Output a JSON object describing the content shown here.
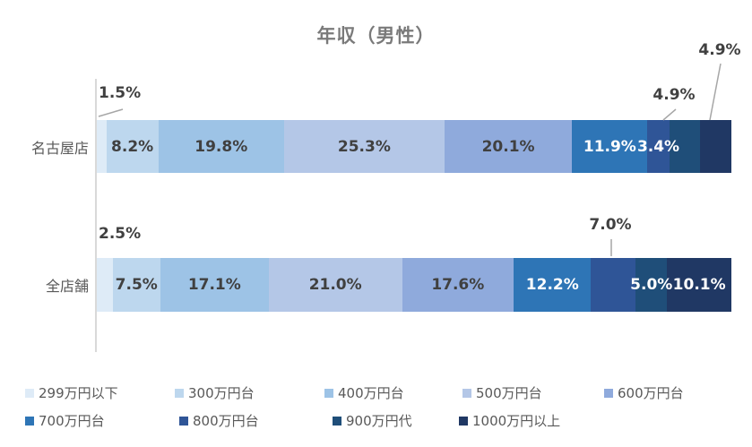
{
  "chart_data": {
    "type": "bar",
    "subtype": "stacked-horizontal",
    "title": "年収（男性）",
    "unit": "%",
    "categories": [
      "名古屋店",
      "全店舗"
    ],
    "series": [
      {
        "name": "299万円以下",
        "color": "#DEEBF7",
        "label_color": "#404040",
        "values": [
          1.5,
          2.5
        ]
      },
      {
        "name": "300万円台",
        "color": "#BDD7EE",
        "label_color": "#404040",
        "values": [
          8.2,
          7.5
        ]
      },
      {
        "name": "400万円台",
        "color": "#9DC3E6",
        "label_color": "#404040",
        "values": [
          19.8,
          17.1
        ]
      },
      {
        "name": "500万円台",
        "color": "#B4C7E7",
        "label_color": "#404040",
        "values": [
          25.3,
          21.0
        ]
      },
      {
        "name": "600万円台",
        "color": "#8FAADC",
        "label_color": "#404040",
        "values": [
          20.1,
          17.6
        ]
      },
      {
        "name": "700万円台",
        "color": "#2E75B6",
        "label_color": "#FFFFFF",
        "values": [
          11.9,
          12.2
        ]
      },
      {
        "name": "800万円台",
        "color": "#2F5597",
        "label_color": "#FFFFFF",
        "values": [
          3.4,
          7.0
        ]
      },
      {
        "name": "900万円代",
        "color": "#1F4E79",
        "label_color": "#FFFFFF",
        "values": [
          4.9,
          5.0
        ]
      },
      {
        "name": "1000万円以上",
        "color": "#203864",
        "label_color": "#FFFFFF",
        "values": [
          4.9,
          10.1
        ]
      }
    ],
    "outside_labels": [
      {
        "category": 0,
        "series": 0,
        "text": "1.5%"
      },
      {
        "category": 0,
        "series": 7,
        "text": "4.9%"
      },
      {
        "category": 0,
        "series": 8,
        "text": "4.9%"
      },
      {
        "category": 1,
        "series": 0,
        "text": "2.5%"
      },
      {
        "category": 1,
        "series": 6,
        "text": "7.0%"
      }
    ],
    "axis": {
      "value_range": [
        0,
        100
      ],
      "gridlines": false
    },
    "legend_position": "bottom"
  },
  "colors": {
    "background": "#FFFFFF",
    "title": "#7A7A7A",
    "category_label": "#595959",
    "data_label_dark": "#404040",
    "axis_line": "#D9D9D9",
    "leader_line": "#A6A6A6",
    "legend_text": "#595959"
  }
}
